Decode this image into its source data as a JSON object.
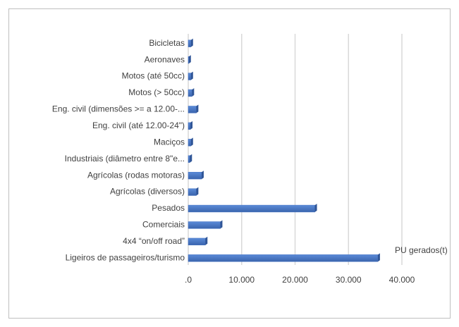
{
  "chart_data": {
    "type": "bar",
    "orientation": "horizontal",
    "categories": [
      "Bicicletas",
      "Aeronaves",
      "Motos (até 50cc)",
      "Motos (> 50cc)",
      "Eng. civil (dimensões >= a 12.00-...",
      "Eng. civil (até 12.00-24\")",
      "Maciços",
      "Industriais (diâmetro entre 8\"e...",
      "Agrícolas (rodas motoras)",
      "Agrícolas (diversos)",
      "Pesados",
      "Comerciais",
      "4x4 “on/off road”",
      "Ligeiros de passageiros/turismo"
    ],
    "series": [
      {
        "name": "PU gerados(t)",
        "color": "#4472c4",
        "values": [
          500,
          100,
          500,
          700,
          1500,
          400,
          500,
          300,
          2500,
          1500,
          23700,
          6000,
          3200,
          35500
        ]
      }
    ],
    "xlim": [
      0,
      40000
    ],
    "xticks": [
      {
        "value": 0,
        "label": ".0"
      },
      {
        "value": 10000,
        "label": "10.000"
      },
      {
        "value": 20000,
        "label": "20.000"
      },
      {
        "value": 30000,
        "label": "30.000"
      },
      {
        "value": 40000,
        "label": "40.000"
      }
    ],
    "grid": true
  }
}
